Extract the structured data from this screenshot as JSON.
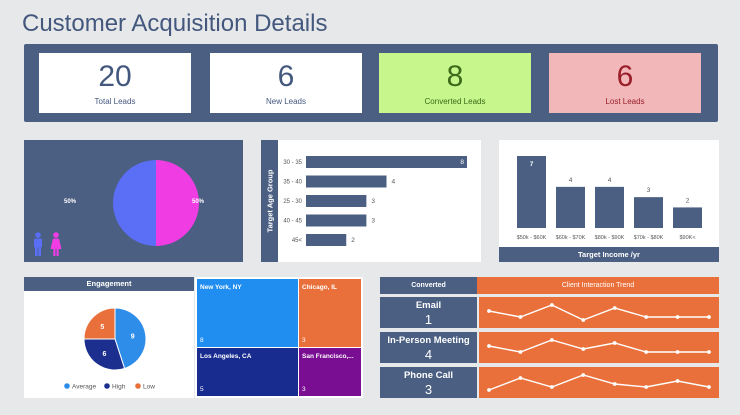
{
  "title": "Customer Acquisition Details",
  "kpis": [
    {
      "value": "20",
      "label": "Total Leads",
      "bg": "#ffffff",
      "color": "#44587e"
    },
    {
      "value": "6",
      "label": "New Leads",
      "bg": "#ffffff",
      "color": "#44587e"
    },
    {
      "value": "8",
      "label": "Converted Leads",
      "bg": "#c6f68c",
      "color": "#3c6b19"
    },
    {
      "value": "6",
      "label": "Lost Leads",
      "bg": "#f1b7b9",
      "color": "#9a1f2a"
    }
  ],
  "chart_data": [
    {
      "type": "pie",
      "categories": [
        "Male",
        "Female"
      ],
      "values": [
        50,
        50
      ],
      "labels": [
        "50%",
        "50%"
      ],
      "colors": [
        "#5b6ef6",
        "#f03de3"
      ],
      "icons": [
        "male-icon",
        "female-icon"
      ]
    },
    {
      "type": "bar",
      "orientation": "horizontal",
      "ylabel": "Target Age Group",
      "categories": [
        "30 - 35",
        "35 - 40",
        "25 - 30",
        "40 - 45",
        "45<"
      ],
      "values": [
        8,
        4,
        3,
        3,
        2
      ],
      "xlim": [
        0,
        8
      ],
      "color": "#4a5f82"
    },
    {
      "type": "bar",
      "xlabel": "Target Income /yr",
      "categories": [
        "$50k - $60K",
        "$60k - $70K",
        "$80k - $90K",
        "$70k - $80K",
        "$90K<"
      ],
      "values": [
        7,
        4,
        4,
        3,
        2
      ],
      "ylim": [
        0,
        7
      ],
      "color": "#4a5f82"
    },
    {
      "type": "pie",
      "title": "Engagement",
      "categories": [
        "Average",
        "High",
        "Low"
      ],
      "values": [
        9,
        6,
        5
      ],
      "colors": [
        "#2f8dea",
        "#1c2f8e",
        "#e9703a"
      ],
      "legend": "bottom"
    },
    {
      "type": "treemap",
      "categories": [
        "New York, NY",
        "Chicago, IL",
        "Los Angeles, CA",
        "San Francisco,..."
      ],
      "values": [
        8,
        3,
        5,
        3
      ],
      "colors": [
        "#1f8ef0",
        "#e9703a",
        "#182c8f",
        "#7a0e92"
      ]
    }
  ],
  "conversions": {
    "header_left": "Converted",
    "header_right": "Client Interaction Trend",
    "rows": [
      {
        "name": "Email",
        "value": "1",
        "trend": [
          5,
          3,
          7,
          2,
          6,
          3,
          3,
          3
        ]
      },
      {
        "name": "In-Person Meeting",
        "value": "4",
        "trend": [
          5,
          3,
          7,
          4,
          6,
          3,
          3,
          3
        ]
      },
      {
        "name": "Phone Call",
        "value": "3",
        "trend": [
          2,
          6,
          3,
          7,
          4,
          3,
          5,
          3
        ]
      }
    ]
  }
}
